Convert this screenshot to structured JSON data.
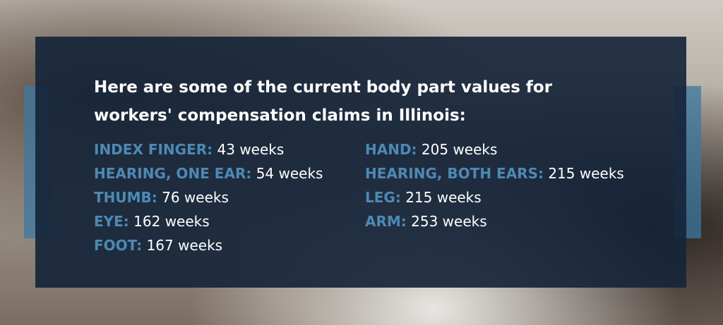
{
  "heading_lines": [
    "Here are some of the current body part values for",
    "workers' compensation claims in Illinois:"
  ],
  "columns": [
    [
      {
        "label": "INDEX FINGER:",
        "value": "43 weeks"
      },
      {
        "label": "HEARING, ONE EAR:",
        "value": "54 weeks"
      },
      {
        "label": "THUMB:",
        "value": "76 weeks"
      },
      {
        "label": "EYE:",
        "value": "162 weeks"
      },
      {
        "label": "FOOT:",
        "value": "167 weeks"
      }
    ],
    [
      {
        "label": "HAND:",
        "value": "205 weeks"
      },
      {
        "label": "HEARING, BOTH EARS:",
        "value": "215 weeks"
      },
      {
        "label": "LEG:",
        "value": "215 weeks"
      },
      {
        "label": "ARM:",
        "value": "253 weeks"
      }
    ]
  ]
}
